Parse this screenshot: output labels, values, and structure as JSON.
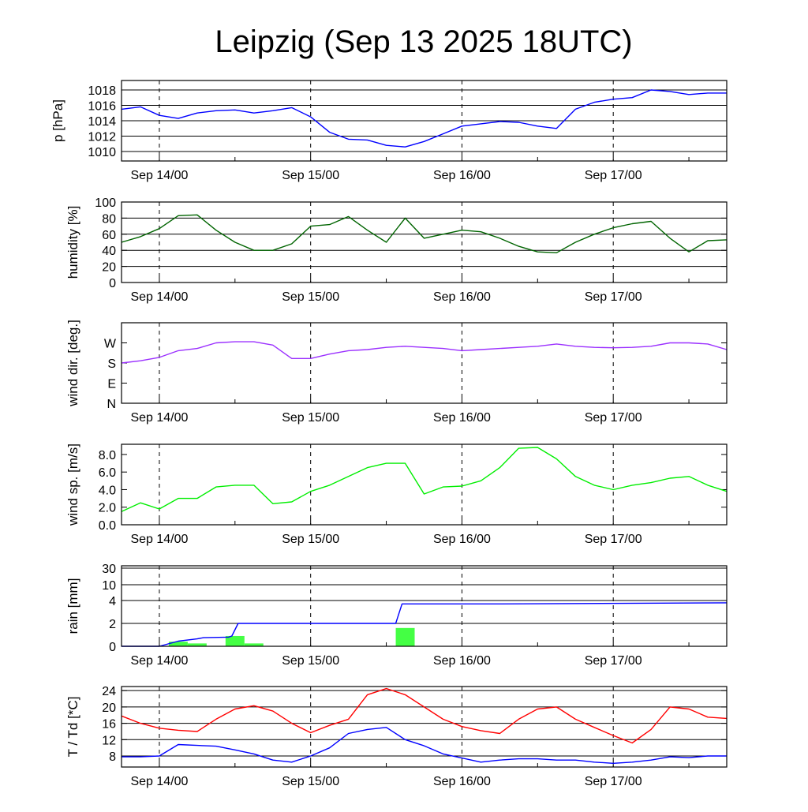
{
  "title": "Leipzig (Sep 13 2025 18UTC)",
  "x_hours": [
    0,
    3,
    6,
    9,
    12,
    15,
    18,
    21,
    24,
    27,
    30,
    33,
    36,
    39,
    42,
    45,
    48,
    51,
    54,
    57,
    60,
    63,
    66,
    69,
    72,
    75,
    78,
    81,
    84,
    87,
    90,
    93,
    96
  ],
  "x_ticks": [
    {
      "hour": 6,
      "label": "Sep 14/00"
    },
    {
      "hour": 30,
      "label": "Sep 15/00"
    },
    {
      "hour": 54,
      "label": "Sep 16/00"
    },
    {
      "hour": 78,
      "label": "Sep 17/00"
    }
  ],
  "chart_data": [
    {
      "id": "pressure",
      "type": "line",
      "ylabel": "p [hPa]",
      "ylim": [
        1008.77,
        1019.23
      ],
      "grid": true,
      "yticks": [
        {
          "v": 1010,
          "label": "1010"
        },
        {
          "v": 1012,
          "label": "1012"
        },
        {
          "v": 1014,
          "label": "1014"
        },
        {
          "v": 1016,
          "label": "1016"
        },
        {
          "v": 1018,
          "label": "1018"
        }
      ],
      "series": [
        {
          "name": "pressure",
          "color": "#0000ff",
          "values": [
            1015.5,
            1015.8,
            1014.7,
            1014.3,
            1015.0,
            1015.3,
            1015.4,
            1015.0,
            1015.3,
            1015.7,
            1014.5,
            1012.5,
            1011.6,
            1011.5,
            1010.8,
            1010.6,
            1011.3,
            1012.3,
            1013.3,
            1013.6,
            1013.9,
            1013.8,
            1013.3,
            1013.0,
            1015.5,
            1016.4,
            1016.8,
            1017.0,
            1018.0,
            1017.8,
            1017.4,
            1017.6,
            1017.6
          ]
        }
      ]
    },
    {
      "id": "humidity",
      "type": "line",
      "ylabel": "humidity [%]",
      "ylim": [
        0,
        100
      ],
      "grid": true,
      "yticks": [
        {
          "v": 0,
          "label": "0"
        },
        {
          "v": 20,
          "label": "20"
        },
        {
          "v": 40,
          "label": "40"
        },
        {
          "v": 60,
          "label": "60"
        },
        {
          "v": 80,
          "label": "80"
        },
        {
          "v": 100,
          "label": "100"
        }
      ],
      "series": [
        {
          "name": "humidity",
          "color": "#006400",
          "values": [
            50,
            57,
            67,
            83,
            84,
            65,
            50,
            40,
            40,
            48,
            70,
            72,
            82,
            65,
            50,
            80,
            55,
            60,
            65,
            63,
            55,
            45,
            38,
            37,
            50,
            60,
            68,
            73,
            76,
            55,
            38,
            52,
            53
          ]
        }
      ]
    },
    {
      "id": "wind_dir",
      "type": "line",
      "ylabel": "wind dir. [deg.]",
      "ylim": [
        0,
        360
      ],
      "grid": false,
      "yticks": [
        {
          "v": 0,
          "label": "N"
        },
        {
          "v": 90,
          "label": "E"
        },
        {
          "v": 180,
          "label": "S"
        },
        {
          "v": 270,
          "label": "W"
        }
      ],
      "series": [
        {
          "name": "wind direction",
          "color": "#9b30ff",
          "values": [
            180,
            190,
            205,
            235,
            245,
            270,
            275,
            275,
            260,
            200,
            200,
            220,
            235,
            240,
            250,
            255,
            250,
            245,
            235,
            240,
            245,
            250,
            255,
            265,
            255,
            250,
            248,
            250,
            255,
            270,
            270,
            265,
            240
          ]
        }
      ]
    },
    {
      "id": "wind_speed",
      "type": "line",
      "ylabel": "wind sp. [m/s]",
      "ylim": [
        0,
        9.16
      ],
      "grid": false,
      "yticks": [
        {
          "v": 0,
          "label": "0.0"
        },
        {
          "v": 2,
          "label": "2.0"
        },
        {
          "v": 4,
          "label": "4.0"
        },
        {
          "v": 6,
          "label": "6.0"
        },
        {
          "v": 8,
          "label": "8.0"
        }
      ],
      "series": [
        {
          "name": "wind speed",
          "color": "#00ee00",
          "values": [
            1.5,
            2.5,
            1.8,
            3.0,
            3.0,
            4.3,
            4.5,
            4.5,
            2.4,
            2.6,
            3.8,
            4.5,
            5.5,
            6.5,
            7.0,
            7.0,
            3.5,
            4.3,
            4.4,
            5.0,
            6.5,
            8.7,
            8.8,
            7.5,
            5.5,
            4.5,
            4.0,
            4.5,
            4.8,
            5.3,
            5.5,
            4.5,
            3.8
          ]
        }
      ]
    },
    {
      "id": "rain",
      "type": "bar+line",
      "ylabel": "rain [mm]",
      "grid": true,
      "yticks": [
        {
          "v": 0,
          "label": "0"
        },
        {
          "v": 2,
          "label": "2"
        },
        {
          "v": 4,
          "label": "4"
        },
        {
          "v": 10,
          "label": "10"
        },
        {
          "v": 30,
          "label": "30"
        }
      ],
      "bars": {
        "name": "3h precipitation",
        "color": "#44ff44",
        "hours": [
          9,
          12,
          18,
          21,
          45
        ],
        "values": [
          0.4,
          0.25,
          0.9,
          0.25,
          1.6
        ]
      },
      "series": [
        {
          "name": "accumulated",
          "color": "#0000ff",
          "hours": [
            0,
            6,
            9,
            12,
            13,
            17,
            17.5,
            18.5,
            43.5,
            44.5,
            60,
            96
          ],
          "values": [
            0,
            0,
            0.45,
            0.65,
            0.75,
            0.8,
            0.9,
            2.0,
            2.0,
            3.7,
            3.7,
            3.8
          ]
        }
      ]
    },
    {
      "id": "temperature",
      "type": "line",
      "ylabel": "T / Td [*C]",
      "ylim": [
        5.3,
        25
      ],
      "grid": true,
      "yticks": [
        {
          "v": 8,
          "label": "8"
        },
        {
          "v": 12,
          "label": "12"
        },
        {
          "v": 16,
          "label": "16"
        },
        {
          "v": 20,
          "label": "20"
        },
        {
          "v": 24,
          "label": "24"
        }
      ],
      "series": [
        {
          "name": "T",
          "color": "#ff0000",
          "values": [
            17.8,
            16,
            14.8,
            14.3,
            14,
            17,
            19.5,
            20.3,
            19,
            16,
            13.7,
            15.5,
            17,
            23,
            24.5,
            23,
            20,
            17,
            15.2,
            14.2,
            13.5,
            17,
            19.5,
            20,
            17,
            15,
            13,
            11.2,
            14.5,
            20,
            19.5,
            17.5,
            17.2
          ]
        },
        {
          "name": "Td",
          "color": "#0000ff",
          "values": [
            7.8,
            7.8,
            8,
            10.8,
            10.6,
            10.4,
            9.5,
            8.5,
            7,
            6.5,
            8,
            10,
            13.5,
            14.5,
            15,
            12,
            10.5,
            8.5,
            7.5,
            6.5,
            7,
            7.3,
            7.3,
            7,
            7,
            6.5,
            6.2,
            6.5,
            7,
            7.8,
            7.6,
            8,
            8
          ]
        }
      ]
    }
  ]
}
